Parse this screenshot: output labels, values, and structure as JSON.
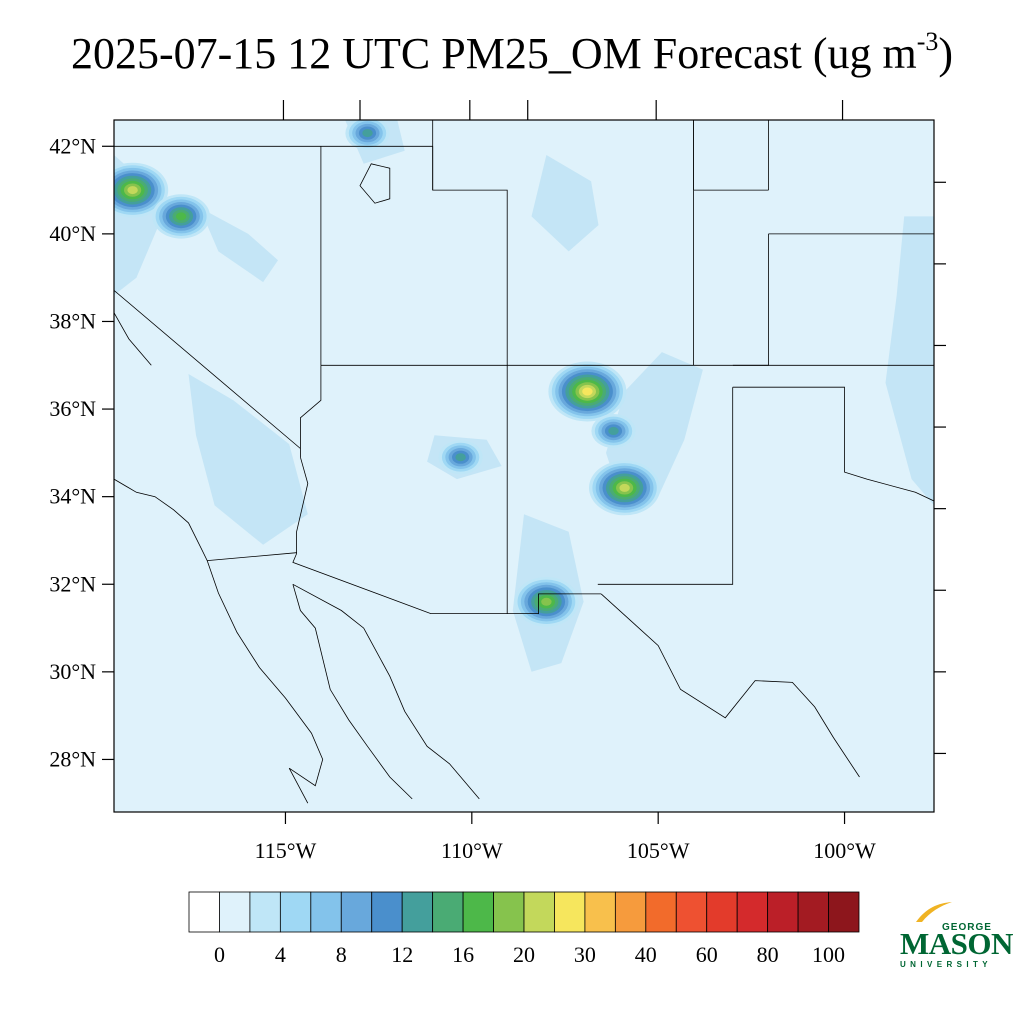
{
  "title": {
    "text": "2025-07-15 12 UTC PM25_OM Forecast (ug m",
    "superscript": "-3",
    "suffix": ")"
  },
  "map": {
    "lon_range": [
      -119.6,
      -97.6
    ],
    "lat_range": [
      26.8,
      42.6
    ],
    "background_color": "#dff2fb",
    "land_shading_color": "#bfe3f5",
    "lat_ticks": [
      {
        "value": 28,
        "label": "28°N"
      },
      {
        "value": 30,
        "label": "30°N"
      },
      {
        "value": 32,
        "label": "32°N"
      },
      {
        "value": 34,
        "label": "34°N"
      },
      {
        "value": 36,
        "label": "36°N"
      },
      {
        "value": 38,
        "label": "38°N"
      },
      {
        "value": 40,
        "label": "40°N"
      },
      {
        "value": 42,
        "label": "42°N"
      }
    ],
    "lon_ticks": [
      {
        "value": -115,
        "label": "115°W"
      },
      {
        "value": -110,
        "label": "110°W"
      },
      {
        "value": -105,
        "label": "105°W"
      },
      {
        "value": -100,
        "label": "100°W"
      }
    ],
    "hotspots": [
      {
        "lon": -106.9,
        "lat": 36.4,
        "level": 12
      },
      {
        "lon": -105.9,
        "lat": 34.2,
        "level": 11
      },
      {
        "lon": -108.0,
        "lat": 31.6,
        "level": 10
      },
      {
        "lon": -110.3,
        "lat": 34.9,
        "level": 7
      },
      {
        "lon": -106.2,
        "lat": 35.5,
        "level": 7
      },
      {
        "lon": -119.1,
        "lat": 41.0,
        "level": 11
      },
      {
        "lon": -117.8,
        "lat": 40.4,
        "level": 9
      },
      {
        "lon": -112.8,
        "lat": 42.3,
        "level": 7
      }
    ]
  },
  "colorbar": {
    "colors": [
      "#ffffff",
      "#dff2fb",
      "#bfe6f7",
      "#9fd8f4",
      "#83c3eb",
      "#68a8dc",
      "#4a8fcc",
      "#449f9c",
      "#4aab74",
      "#4db849",
      "#86c34d",
      "#c3d85b",
      "#f6e65d",
      "#f8c04c",
      "#f69b3d",
      "#f26b2b",
      "#ee5131",
      "#e33b2b",
      "#d42a2c",
      "#bb1f28",
      "#a31b22",
      "#8d161c"
    ],
    "labels": [
      "0",
      "4",
      "8",
      "12",
      "16",
      "20",
      "30",
      "40",
      "60",
      "80",
      "100"
    ]
  },
  "logo": {
    "line1": "GEORGE",
    "line2": "MASON",
    "line3": "UNIVERSITY",
    "color": "#006633",
    "accent": "#f0b323"
  }
}
